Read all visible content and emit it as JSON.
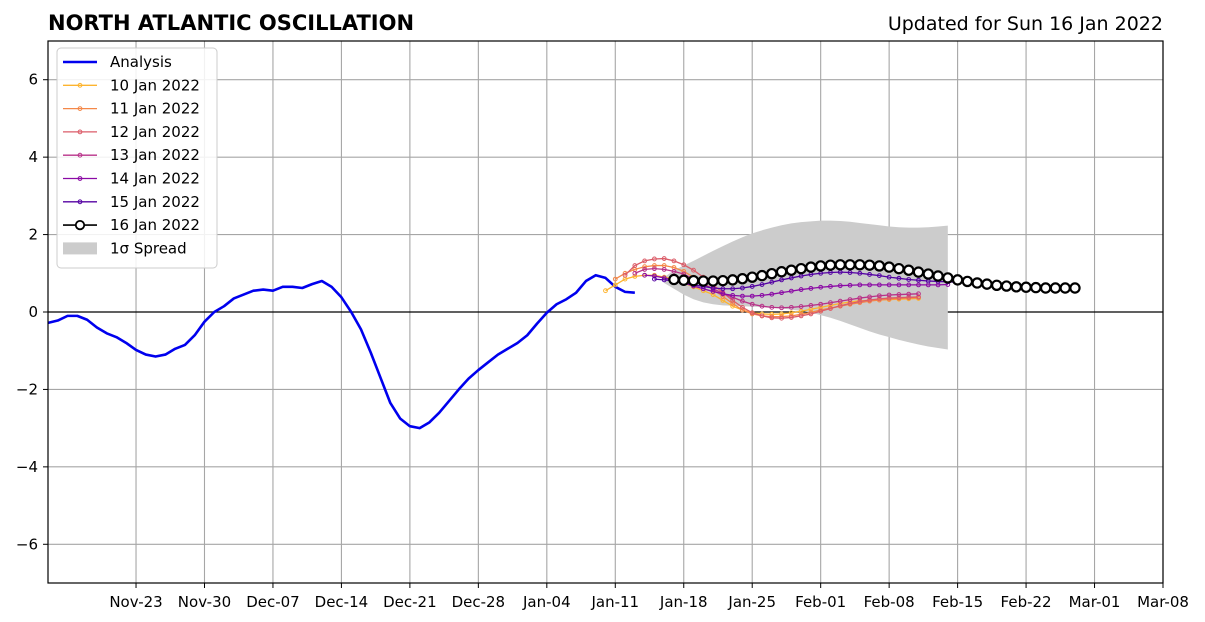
{
  "chart_data": {
    "type": "line",
    "title": "NORTH ATLANTIC OSCILLATION",
    "subtitle": "Updated for Sun 16 Jan 2022",
    "xlabel": "",
    "ylabel": "",
    "xlim": [
      "2021-11-14",
      "2022-03-08"
    ],
    "ylim": [
      -7,
      7
    ],
    "grid": true,
    "legend_position": "top-left",
    "x_ticks": [
      "Nov-23",
      "Nov-30",
      "Dec-07",
      "Dec-14",
      "Dec-21",
      "Dec-28",
      "Jan-04",
      "Jan-11",
      "Jan-18",
      "Jan-25",
      "Feb-01",
      "Feb-08",
      "Feb-15",
      "Feb-22",
      "Mar-01",
      "Mar-08"
    ],
    "y_ticks": [
      -6,
      -4,
      -2,
      0,
      2,
      4,
      6
    ],
    "analysis": {
      "name": "Analysis",
      "color": "#0000ee",
      "start": "2021-11-14",
      "values": [
        -0.28,
        -0.22,
        -0.1,
        -0.1,
        -0.2,
        -0.4,
        -0.55,
        -0.65,
        -0.8,
        -0.98,
        -1.1,
        -1.15,
        -1.1,
        -0.95,
        -0.85,
        -0.6,
        -0.25,
        0.0,
        0.15,
        0.35,
        0.45,
        0.55,
        0.58,
        0.55,
        0.65,
        0.65,
        0.62,
        0.72,
        0.8,
        0.65,
        0.38,
        0.0,
        -0.45,
        -1.05,
        -1.7,
        -2.35,
        -2.75,
        -2.95,
        -3.0,
        -2.85,
        -2.6,
        -2.3,
        -2.0,
        -1.72,
        -1.5,
        -1.3,
        -1.1,
        -0.95,
        -0.8,
        -0.6,
        -0.3,
        -0.02,
        0.2,
        0.33,
        0.5,
        0.8,
        0.95,
        0.88,
        0.65,
        0.52,
        0.5
      ]
    },
    "forecasts": [
      {
        "name": "10 Jan 2022",
        "color": "#fdb42f",
        "start": "2022-01-10",
        "values": [
          0.55,
          0.7,
          0.85,
          0.92,
          0.95,
          0.95,
          0.9,
          0.85,
          0.75,
          0.65,
          0.55,
          0.45,
          0.3,
          0.15,
          0.05,
          -0.02,
          -0.05,
          -0.06,
          -0.05,
          -0.02,
          0.02,
          0.07,
          0.12,
          0.17,
          0.22,
          0.26,
          0.29,
          0.3,
          0.31,
          0.32,
          0.33,
          0.34,
          0.35
        ]
      },
      {
        "name": "11 Jan 2022",
        "color": "#f48849",
        "start": "2022-01-11",
        "values": [
          0.85,
          1.0,
          1.1,
          1.17,
          1.2,
          1.2,
          1.15,
          1.05,
          0.9,
          0.75,
          0.58,
          0.4,
          0.22,
          0.05,
          -0.05,
          -0.1,
          -0.12,
          -0.12,
          -0.1,
          -0.06,
          -0.01,
          0.05,
          0.1,
          0.15,
          0.2,
          0.24,
          0.28,
          0.31,
          0.33,
          0.35,
          0.36,
          0.37
        ]
      },
      {
        "name": "12 Jan 2022",
        "color": "#db5c68",
        "start": "2022-01-12",
        "values": [
          0.95,
          1.2,
          1.32,
          1.37,
          1.38,
          1.32,
          1.22,
          1.08,
          0.9,
          0.7,
          0.5,
          0.3,
          0.12,
          -0.02,
          -0.1,
          -0.15,
          -0.16,
          -0.14,
          -0.1,
          -0.05,
          0.02,
          0.09,
          0.16,
          0.22,
          0.27,
          0.31,
          0.34,
          0.36,
          0.37,
          0.38,
          0.39
        ]
      },
      {
        "name": "13 Jan 2022",
        "color": "#b83289",
        "start": "2022-01-13",
        "values": [
          1.0,
          1.1,
          1.12,
          1.1,
          1.05,
          0.98,
          0.85,
          0.72,
          0.6,
          0.48,
          0.38,
          0.28,
          0.2,
          0.15,
          0.12,
          0.11,
          0.12,
          0.14,
          0.17,
          0.2,
          0.24,
          0.28,
          0.32,
          0.36,
          0.39,
          0.42,
          0.44,
          0.45,
          0.46,
          0.47
        ]
      },
      {
        "name": "14 Jan 2022",
        "color": "#8b0aa5",
        "start": "2022-01-14",
        "values": [
          0.95,
          0.93,
          0.88,
          0.82,
          0.75,
          0.67,
          0.6,
          0.53,
          0.47,
          0.43,
          0.41,
          0.41,
          0.43,
          0.46,
          0.5,
          0.54,
          0.58,
          0.61,
          0.64,
          0.66,
          0.68,
          0.69,
          0.7,
          0.7,
          0.7,
          0.7,
          0.7,
          0.7,
          0.7,
          0.7,
          0.7,
          0.71
        ]
      },
      {
        "name": "15 Jan 2022",
        "color": "#5402a3",
        "start": "2022-01-15",
        "values": [
          0.85,
          0.83,
          0.8,
          0.75,
          0.7,
          0.66,
          0.62,
          0.6,
          0.6,
          0.62,
          0.66,
          0.71,
          0.77,
          0.83,
          0.88,
          0.93,
          0.97,
          1.0,
          1.02,
          1.03,
          1.02,
          1.0,
          0.97,
          0.94,
          0.9,
          0.87,
          0.84,
          0.82,
          0.8,
          0.79,
          0.78,
          0.77,
          0.76,
          0.76,
          0.76
        ]
      }
    ],
    "latest": {
      "name": "16 Jan 2022",
      "color": "#000000",
      "start": "2022-01-17",
      "values": [
        0.84,
        0.82,
        0.81,
        0.8,
        0.8,
        0.81,
        0.83,
        0.86,
        0.9,
        0.94,
        0.99,
        1.04,
        1.08,
        1.12,
        1.16,
        1.19,
        1.21,
        1.22,
        1.22,
        1.22,
        1.21,
        1.19,
        1.16,
        1.12,
        1.08,
        1.03,
        0.98,
        0.93,
        0.88,
        0.83,
        0.79,
        0.75,
        0.72,
        0.69,
        0.67,
        0.65,
        0.64,
        0.63,
        0.62,
        0.62,
        0.62,
        0.62
      ]
    },
    "spread": {
      "name": "1σ Spread",
      "color": "#cccccc",
      "start": "2022-01-16",
      "upper": [
        0.9,
        1.08,
        1.2,
        1.32,
        1.45,
        1.58,
        1.7,
        1.82,
        1.93,
        2.03,
        2.11,
        2.18,
        2.24,
        2.29,
        2.32,
        2.34,
        2.36,
        2.36,
        2.35,
        2.33,
        2.3,
        2.27,
        2.24,
        2.21,
        2.19,
        2.18,
        2.18,
        2.19,
        2.21,
        2.23
      ],
      "lower": [
        0.75,
        0.6,
        0.45,
        0.33,
        0.25,
        0.2,
        0.17,
        0.16,
        0.15,
        0.14,
        0.13,
        0.11,
        0.09,
        0.06,
        0.03,
        -0.02,
        -0.08,
        -0.15,
        -0.23,
        -0.32,
        -0.41,
        -0.5,
        -0.58,
        -0.65,
        -0.72,
        -0.78,
        -0.84,
        -0.89,
        -0.93,
        -0.97
      ]
    }
  }
}
